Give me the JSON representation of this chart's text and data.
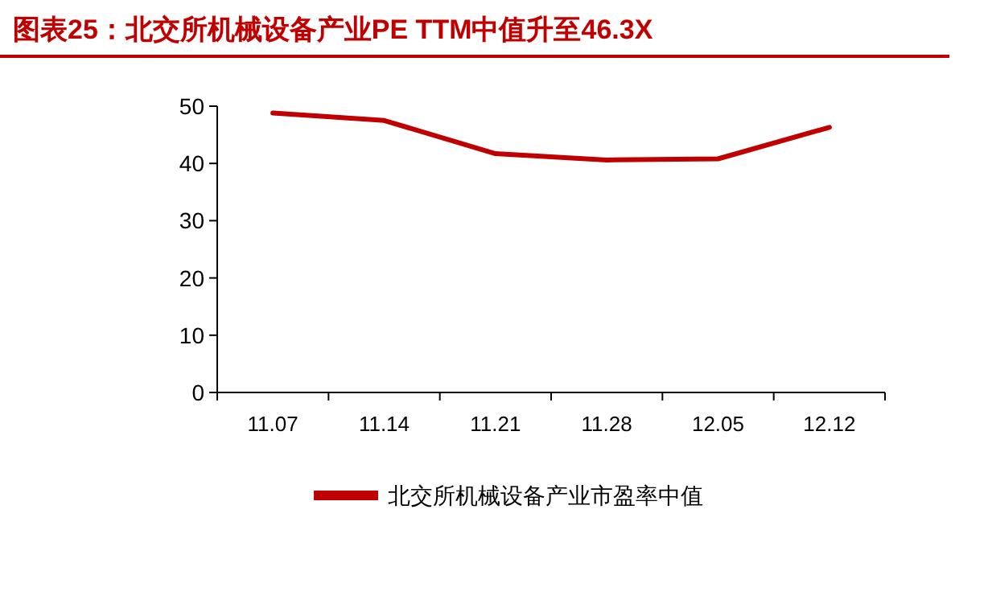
{
  "chart_data": {
    "type": "line",
    "title": "图表25：北交所机械设备产业PE TTM中值升至46.3X",
    "categories": [
      "11.07",
      "11.14",
      "11.21",
      "11.28",
      "12.05",
      "12.12"
    ],
    "series": [
      {
        "name": "北交所机械设备产业市盈率中值",
        "color": "#c00000",
        "values": [
          48.8,
          47.5,
          41.7,
          40.6,
          40.8,
          46.3
        ]
      }
    ],
    "ylim": [
      0,
      50
    ],
    "yticks": [
      0,
      10,
      20,
      30,
      40,
      50
    ],
    "legend": "bottom",
    "grid": false
  }
}
